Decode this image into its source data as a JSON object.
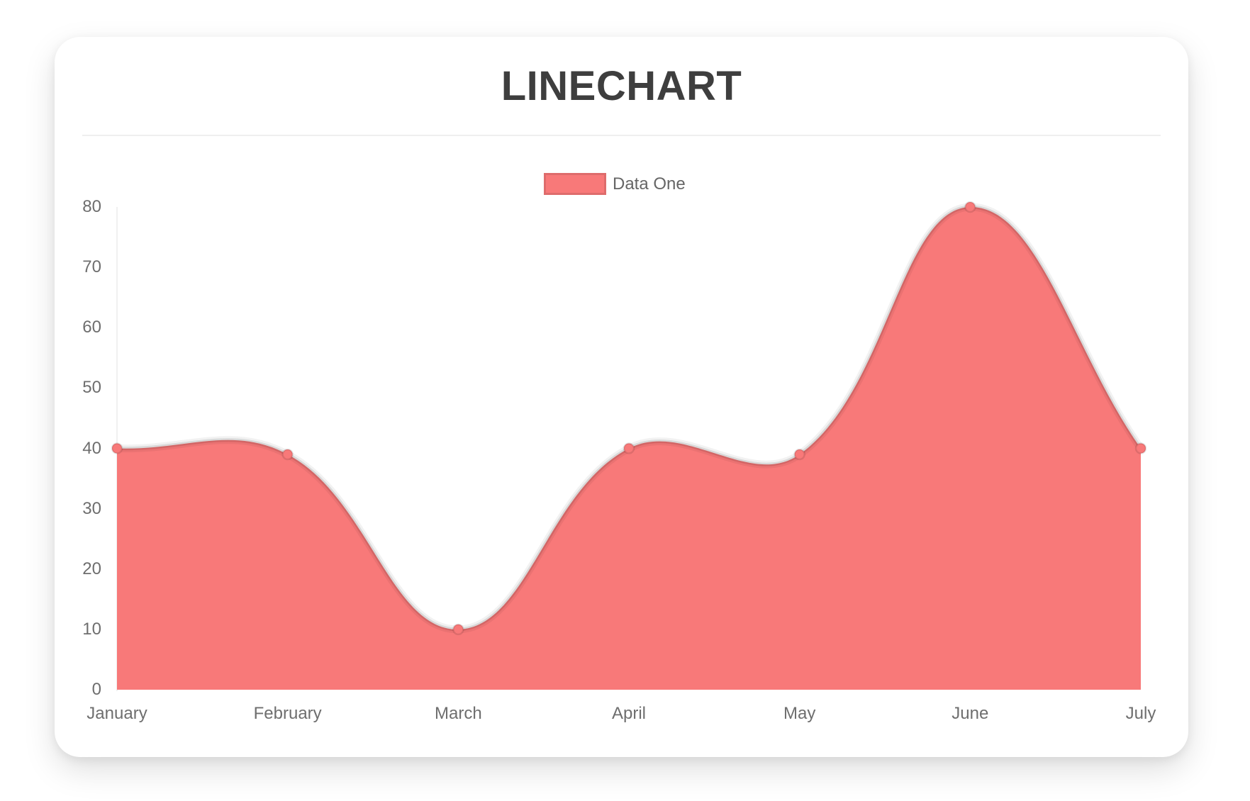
{
  "card": {
    "background": "#ffffff"
  },
  "legend": {
    "items": [
      {
        "label": "Data One",
        "color": "#f87979"
      }
    ]
  },
  "chart_data": {
    "type": "area",
    "title": "LINECHART",
    "categories": [
      "January",
      "February",
      "March",
      "April",
      "May",
      "June",
      "July"
    ],
    "series": [
      {
        "name": "Data One",
        "color": "#f87979",
        "values": [
          40,
          39,
          10,
          40,
          39,
          80,
          40
        ]
      }
    ],
    "xlabel": "",
    "ylabel": "",
    "ylim": [
      0,
      80
    ],
    "yticks": [
      0,
      10,
      20,
      30,
      40,
      50,
      60,
      70,
      80
    ],
    "grid": false,
    "legend_position": "top",
    "line_tension": 0.4,
    "line_color": "rgba(0,0,0,0.10)",
    "line_soft_shadow_color": "rgba(0,0,0,0.05)",
    "point_border_color": "rgba(0,0,0,0.10)",
    "axis_line_color": "#f0f0f0",
    "tick_color": "#6e6e6e",
    "title_color": "#3e3e3e"
  }
}
